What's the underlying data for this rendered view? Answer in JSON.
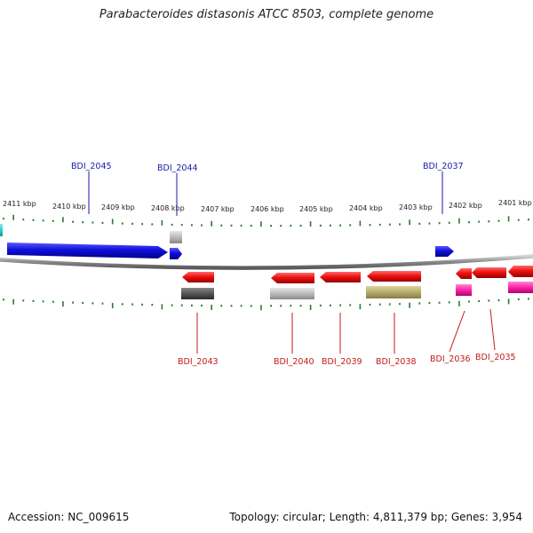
{
  "title": "Parabacteroides distasonis ATCC 8503, complete genome",
  "footer": {
    "accession": "Accession: NC_009615",
    "summary": "Topology: circular; Length: 4,811,379 bp; Genes: 3,954"
  },
  "colors": {
    "forward_gene": "#1010dd",
    "reverse_gene": "#ee1111",
    "label_forward": "#1a1aa8",
    "label_reverse": "#c41a1a",
    "tick": "#2b7a2b",
    "backbone": "#8a8a8a",
    "cyan_edge": "#00c8c8",
    "grey_rna": "#bbbbbb",
    "dark_rna": "#555555",
    "olive": "#b6ad6c",
    "magenta": "#ff22aa"
  },
  "ticks": [
    "2411 kbp",
    "2410 kbp",
    "2409 kbp",
    "2408 kbp",
    "2407 kbp",
    "2406 kbp",
    "2405 kbp",
    "2404 kbp",
    "2403 kbp",
    "2402 kbp",
    "2401 kbp"
  ],
  "forward_labels": [
    "BDI_2045",
    "BDI_2044",
    "BDI_2037"
  ],
  "reverse_labels": [
    "BDI_2043",
    "BDI_2040",
    "BDI_2039",
    "BDI_2038",
    "BDI_2036",
    "BDI_2035"
  ]
}
